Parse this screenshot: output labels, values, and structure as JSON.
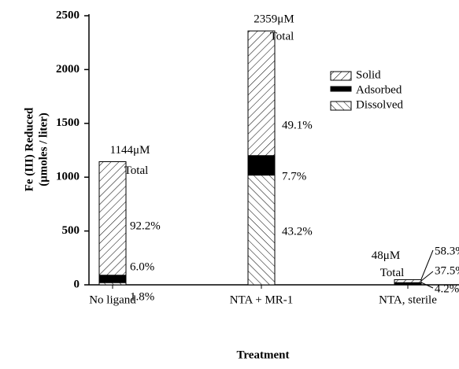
{
  "chart_data": {
    "type": "stacked-bar",
    "y_label": [
      "Fe (III) Reduced",
      "(μmoles / liter)"
    ],
    "x_label": "Treatment",
    "categories": [
      "No ligand",
      "NTA + MR-1",
      "NTA, sterile"
    ],
    "series": [
      {
        "name": "Dissolved",
        "color": "#000000",
        "hatch": "\\",
        "values": [
          20.6,
          1019.1,
          2.0
        ],
        "percent_labels": [
          "1.8%",
          "43.2%",
          "4.2%"
        ]
      },
      {
        "name": "Adsorbed",
        "color": "#000000",
        "hatch": null,
        "values": [
          68.6,
          181.6,
          18.0
        ],
        "percent_labels": [
          "6.0%",
          "7.7%",
          "37.5%"
        ]
      },
      {
        "name": "Solid",
        "color": "#000000",
        "hatch": "/",
        "values": [
          1054.8,
          1158.3,
          28.0
        ],
        "percent_labels": [
          "92.2%",
          "49.1%",
          "58.3%"
        ]
      }
    ],
    "totals": [
      {
        "value_label": "1144μM",
        "label": "Total"
      },
      {
        "value_label": "2359μM",
        "label": "Total"
      },
      {
        "value_label": "48μM",
        "label": "Total"
      }
    ],
    "ylim": [
      0,
      2500
    ],
    "yticks": [
      0,
      500,
      1000,
      1500,
      2000,
      2500
    ],
    "legend": "upper right"
  }
}
